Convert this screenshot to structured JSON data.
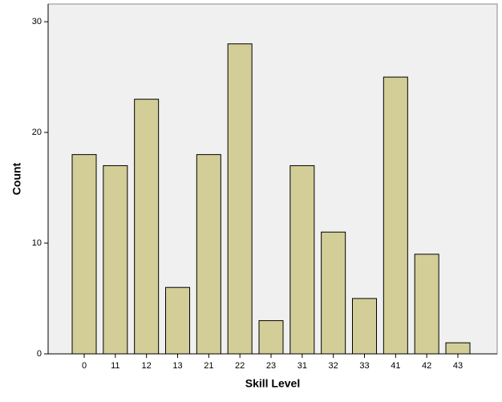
{
  "chart_data": {
    "type": "bar",
    "x_label": "Skill Level",
    "y_label": "Count",
    "categories": [
      "0",
      "11",
      "12",
      "13",
      "21",
      "22",
      "23",
      "31",
      "32",
      "33",
      "41",
      "42",
      "43"
    ],
    "values": [
      18,
      17,
      23,
      6,
      18,
      28,
      3,
      17,
      11,
      5,
      25,
      9,
      1
    ],
    "color": "#d3ce97",
    "ylim": [
      0,
      31.6
    ],
    "yticks": [
      0,
      10,
      20,
      30
    ],
    "grid": false
  }
}
